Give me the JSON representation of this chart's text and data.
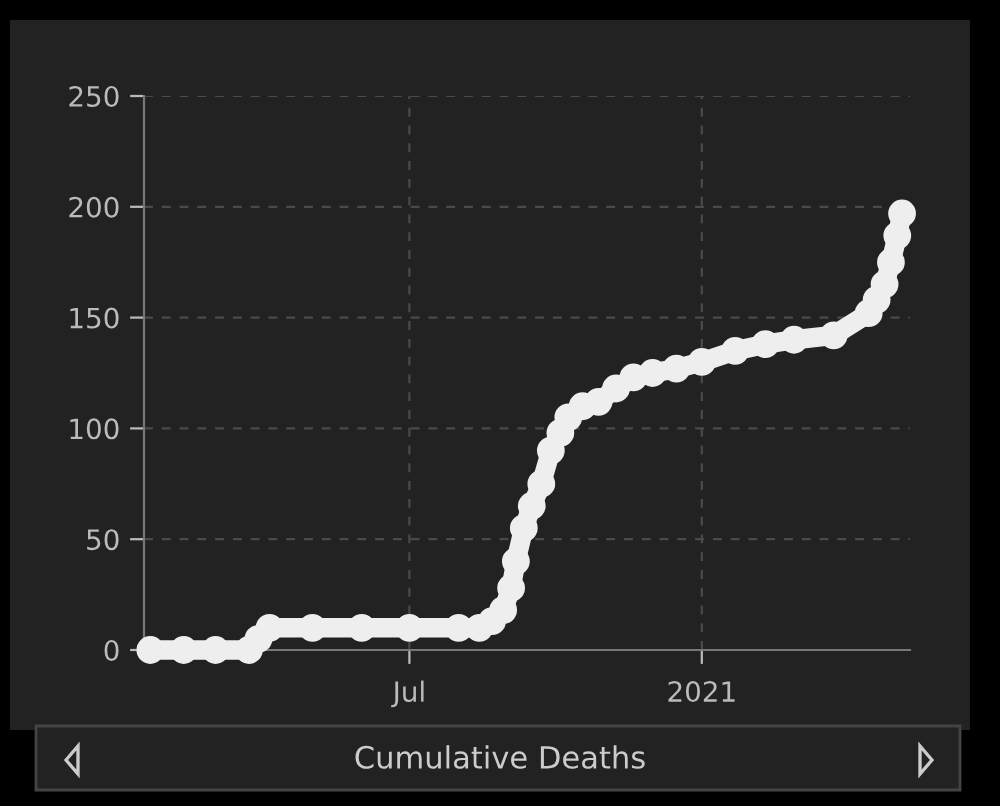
{
  "chart_data": {
    "type": "line",
    "title": "Cumulative Deaths",
    "x": [
      "2020-01-20",
      "2020-02-10",
      "2020-03-01",
      "2020-03-22",
      "2020-03-28",
      "2020-04-04",
      "2020-05-01",
      "2020-06-01",
      "2020-07-01",
      "2020-08-01",
      "2020-08-14",
      "2020-08-22",
      "2020-08-29",
      "2020-09-03",
      "2020-09-06",
      "2020-09-11",
      "2020-09-16",
      "2020-09-22",
      "2020-09-28",
      "2020-10-04",
      "2020-10-09",
      "2020-10-18",
      "2020-10-28",
      "2020-11-08",
      "2020-11-19",
      "2020-12-01",
      "2020-12-16",
      "2021-01-01",
      "2021-01-22",
      "2021-02-10",
      "2021-02-28",
      "2021-03-25",
      "2021-04-16",
      "2021-04-21",
      "2021-04-26",
      "2021-04-30",
      "2021-05-04",
      "2021-05-07"
    ],
    "series": [
      {
        "color": "#eeeeee",
        "values": [
          0,
          0,
          0,
          0,
          5,
          10,
          10,
          10,
          10,
          10,
          10,
          13,
          18,
          28,
          40,
          55,
          65,
          75,
          90,
          98,
          105,
          110,
          112,
          118,
          123,
          125,
          127,
          130,
          135,
          138,
          140,
          142,
          152,
          158,
          165,
          175,
          187,
          197
        ]
      }
    ],
    "xlim": [
      "2020-01-16",
      "2021-05-12"
    ],
    "xticks": [
      {
        "value": "2020-07-01",
        "label": "Jul"
      },
      {
        "value": "2021-01-01",
        "label": "2021"
      }
    ],
    "ylim": [
      0,
      250
    ],
    "yticks": [
      0,
      50,
      100,
      150,
      200,
      250
    ],
    "grid": true,
    "marker": "circle",
    "line_style": "solid"
  }
}
